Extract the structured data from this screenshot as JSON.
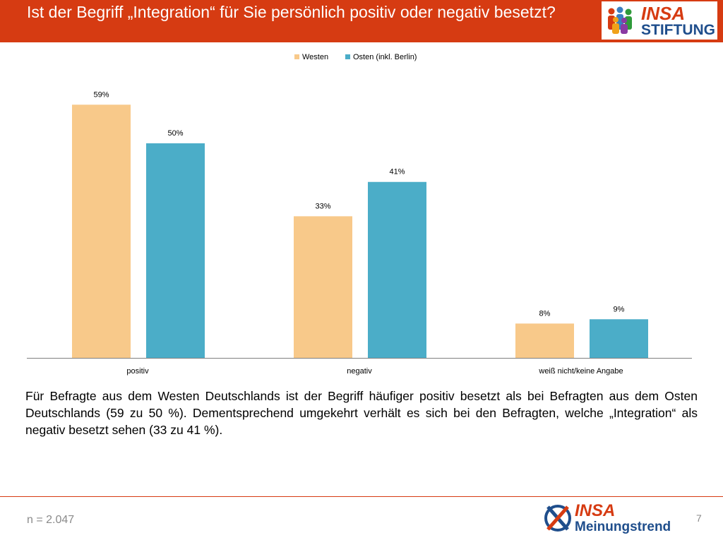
{
  "header": {
    "title": "Ist der Begriff „Integration“ für Sie persönlich positiv oder negativ besetzt?",
    "logo_text_1": "INSA",
    "logo_text_2": "STIFTUNG"
  },
  "chart_data": {
    "type": "bar",
    "categories": [
      "positiv",
      "negativ",
      "weiß nicht/keine Angabe"
    ],
    "series": [
      {
        "name": "Westen",
        "values": [
          59,
          33,
          8
        ],
        "labels": [
          "59%",
          "33%",
          "8%"
        ],
        "color": "#f8c98a"
      },
      {
        "name": "Osten (inkl. Berlin)",
        "values": [
          50,
          41,
          9
        ],
        "labels": [
          "50%",
          "41%",
          "9%"
        ],
        "color": "#4badc8"
      }
    ],
    "ylim": [
      0,
      63
    ],
    "legend_position": "top-center",
    "grid": false
  },
  "description": "Für Befragte aus dem Westen Deutschlands ist der Begriff häufiger positiv besetzt als bei Befragten aus dem Osten Deutschlands (59 zu 50 %). Dementsprechend umgekehrt verhält es sich bei den Befragten, welche „Integration“ als negativ besetzt sehen (33 zu 41 %).",
  "footer": {
    "sample": "n = 2.047",
    "page": "7",
    "logo_text_1": "INSA",
    "logo_text_2": "Meinungstrend"
  },
  "colors": {
    "accent": "#d63b12",
    "insa_blue": "#1f4e8c"
  }
}
